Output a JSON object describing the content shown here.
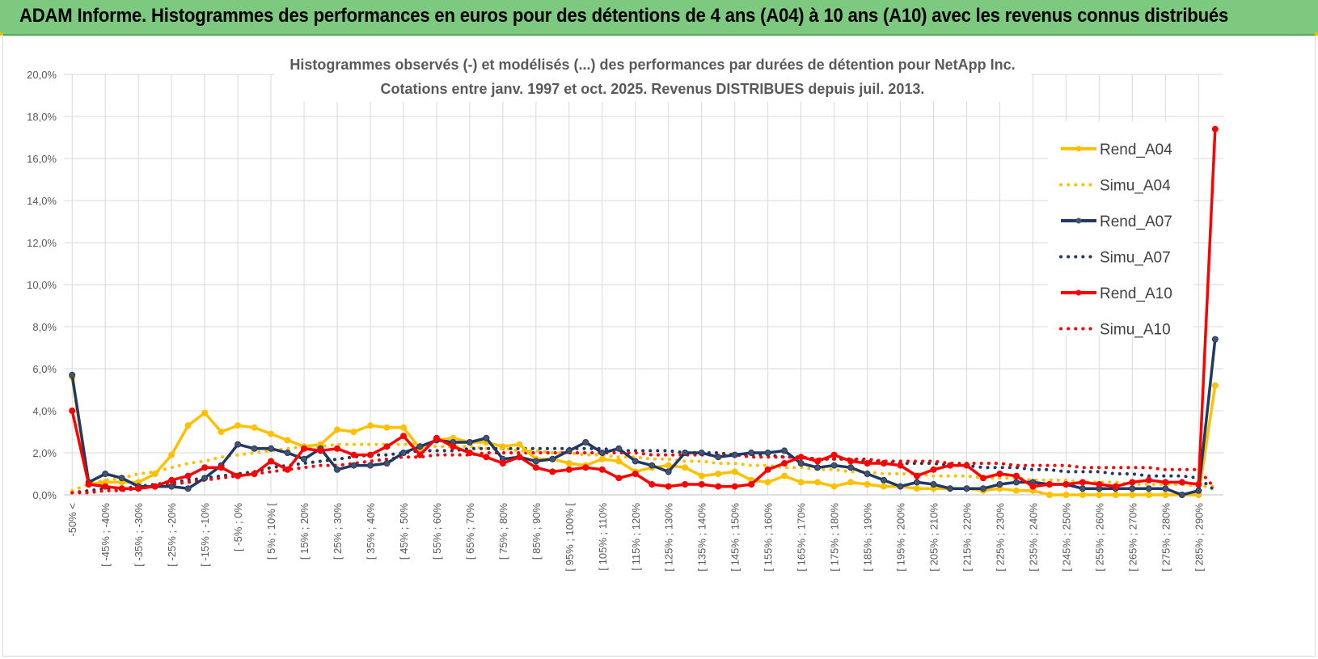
{
  "header": {
    "title": "ADAM Informe. Histogrammes des performances en euros pour des détentions de 4 ans (A04) à 10 ans (A10) avec les revenus connus distribués"
  },
  "chart_data": {
    "type": "line",
    "title": "Histogrammes observés (-) et modélisés (...) des performances par durées de détention pour NetApp Inc.",
    "subtitle": "Cotations entre janv. 1997 et oct. 2025.  Revenus DISTRIBUES depuis juil. 2013.",
    "xlabel": "",
    "ylabel": "",
    "ylim": [
      0,
      20
    ],
    "yticks": [
      "0,0%",
      "2,0%",
      "4,0%",
      "6,0%",
      "8,0%",
      "10,0%",
      "12,0%",
      "14,0%",
      "16,0%",
      "18,0%",
      "20,0%"
    ],
    "grid": true,
    "legend_position": "right",
    "category_count": 70,
    "tick_labels": [
      "-50% <",
      "[ -45% ; -40%",
      "[ -35% ; -30%",
      "[ -25% ; -20%",
      "[ -15% ; -10%",
      "[ -5% ; 0%",
      "[ 5% ; 10% [",
      "[ 15% ; 20%",
      "[ 25% ; 30%",
      "[ 35% ; 40%",
      "[ 45% ; 50%",
      "[ 55% ; 60%",
      "[ 65% ; 70%",
      "[ 75% ; 80%",
      "[ 85% ; 90%",
      "[ 95% ; 100% [",
      "[ 105% ; 110%",
      "[ 115% ; 120%",
      "[ 125% ; 130%",
      "[ 135% ; 140%",
      "[ 145% ; 150%",
      "[ 155% ; 160%",
      "[ 165% ; 170%",
      "[ 175% ; 180%",
      "[ 185% ; 190%",
      "[ 195% ; 200%",
      "[ 205% ; 210%",
      "[ 215% ; 220%",
      "[ 225% ; 230%",
      "[ 235% ; 240%",
      "[ 245% ; 250%",
      "[ 255% ; 260%",
      "[ 265% ; 270%",
      "[ 275% ; 280%",
      "[ 285% ; 290%"
    ],
    "tick_label_indices": [
      0,
      2,
      4,
      6,
      8,
      10,
      12,
      14,
      16,
      18,
      20,
      22,
      24,
      26,
      28,
      30,
      32,
      34,
      36,
      38,
      40,
      42,
      44,
      46,
      48,
      50,
      52,
      54,
      56,
      58,
      60,
      62,
      64,
      66,
      68
    ],
    "series": [
      {
        "name": "Rend_A04",
        "style": "solid",
        "color": "#ffc000",
        "marker": true,
        "values": [
          5.6,
          0.5,
          0.6,
          0.6,
          0.6,
          1.0,
          1.9,
          3.3,
          3.9,
          3.0,
          3.3,
          3.2,
          2.9,
          2.6,
          2.3,
          2.4,
          3.1,
          3.0,
          3.3,
          3.2,
          3.2,
          2.2,
          2.6,
          2.7,
          2.5,
          2.5,
          2.3,
          2.4,
          1.7,
          1.7,
          1.5,
          1.4,
          1.7,
          1.6,
          1.1,
          1.3,
          1.4,
          1.3,
          0.9,
          1.0,
          1.1,
          0.7,
          0.6,
          0.9,
          0.6,
          0.6,
          0.4,
          0.6,
          0.5,
          0.4,
          0.4,
          0.3,
          0.3,
          0.3,
          0.3,
          0.2,
          0.3,
          0.2,
          0.2,
          0.0,
          0.0,
          0.0,
          0.0,
          0.0,
          0.0,
          0.0,
          0.0,
          0.0,
          0.0,
          5.2
        ]
      },
      {
        "name": "Simu_A04",
        "style": "dotted",
        "color": "#ffc000",
        "marker": false,
        "values": [
          0.2,
          0.5,
          0.7,
          0.8,
          1.0,
          1.1,
          1.3,
          1.5,
          1.6,
          1.8,
          1.9,
          2.0,
          2.1,
          2.2,
          2.3,
          2.3,
          2.4,
          2.4,
          2.4,
          2.4,
          2.4,
          2.4,
          2.3,
          2.3,
          2.3,
          2.2,
          2.2,
          2.1,
          2.1,
          2.0,
          2.0,
          1.9,
          1.9,
          1.8,
          1.8,
          1.7,
          1.7,
          1.6,
          1.6,
          1.5,
          1.5,
          1.4,
          1.4,
          1.3,
          1.3,
          1.2,
          1.2,
          1.1,
          1.1,
          1.0,
          1.0,
          1.0,
          0.9,
          0.9,
          0.9,
          0.8,
          0.8,
          0.8,
          0.7,
          0.7,
          0.7,
          0.6,
          0.6,
          0.6,
          0.5,
          0.5,
          0.5,
          0.5,
          0.4,
          0.4
        ]
      },
      {
        "name": "Rend_A07",
        "style": "solid",
        "color": "#203864",
        "marker": true,
        "values": [
          5.7,
          0.6,
          1.0,
          0.8,
          0.4,
          0.4,
          0.4,
          0.3,
          0.8,
          1.4,
          2.4,
          2.2,
          2.2,
          2.0,
          1.7,
          2.2,
          1.2,
          1.4,
          1.4,
          1.5,
          2.0,
          2.3,
          2.6,
          2.5,
          2.5,
          2.7,
          1.7,
          1.8,
          1.6,
          1.7,
          2.1,
          2.5,
          2.0,
          2.2,
          1.6,
          1.4,
          1.1,
          2.0,
          2.0,
          1.8,
          1.9,
          2.0,
          2.0,
          2.1,
          1.5,
          1.3,
          1.4,
          1.3,
          1.0,
          0.7,
          0.4,
          0.6,
          0.5,
          0.3,
          0.3,
          0.3,
          0.5,
          0.6,
          0.6,
          0.5,
          0.5,
          0.3,
          0.3,
          0.3,
          0.3,
          0.3,
          0.3,
          0.0,
          0.2,
          7.4
        ]
      },
      {
        "name": "Simu_A07",
        "style": "dotted",
        "color": "#203864",
        "marker": false,
        "values": [
          0.1,
          0.2,
          0.3,
          0.3,
          0.4,
          0.5,
          0.6,
          0.7,
          0.8,
          0.9,
          1.0,
          1.1,
          1.3,
          1.4,
          1.5,
          1.6,
          1.7,
          1.8,
          1.9,
          1.9,
          2.0,
          2.1,
          2.1,
          2.1,
          2.2,
          2.2,
          2.2,
          2.2,
          2.2,
          2.2,
          2.2,
          2.2,
          2.2,
          2.1,
          2.1,
          2.1,
          2.1,
          2.0,
          2.0,
          2.0,
          1.9,
          1.9,
          1.9,
          1.8,
          1.8,
          1.7,
          1.7,
          1.7,
          1.6,
          1.6,
          1.5,
          1.5,
          1.5,
          1.4,
          1.4,
          1.3,
          1.3,
          1.3,
          1.2,
          1.2,
          1.1,
          1.1,
          1.1,
          1.0,
          1.0,
          0.9,
          0.9,
          0.9,
          0.8,
          0.2
        ]
      },
      {
        "name": "Rend_A10",
        "style": "solid",
        "color": "#ff0000",
        "marker": true,
        "values": [
          4.0,
          0.5,
          0.4,
          0.3,
          0.3,
          0.4,
          0.7,
          0.9,
          1.3,
          1.3,
          0.9,
          1.0,
          1.6,
          1.2,
          2.2,
          2.1,
          2.2,
          1.9,
          1.9,
          2.3,
          2.8,
          1.9,
          2.7,
          2.3,
          2.0,
          1.8,
          1.5,
          1.8,
          1.3,
          1.1,
          1.2,
          1.3,
          1.2,
          0.8,
          1.0,
          0.5,
          0.4,
          0.5,
          0.5,
          0.4,
          0.4,
          0.5,
          1.2,
          1.5,
          1.8,
          1.6,
          1.9,
          1.6,
          1.5,
          1.5,
          1.4,
          0.9,
          1.2,
          1.4,
          1.4,
          0.8,
          1.0,
          0.9,
          0.4,
          0.5,
          0.5,
          0.6,
          0.5,
          0.4,
          0.6,
          0.7,
          0.6,
          0.6,
          0.5,
          17.4
        ]
      },
      {
        "name": "Simu_A10",
        "style": "dotted",
        "color": "#ff0000",
        "marker": false,
        "values": [
          0.1,
          0.1,
          0.2,
          0.2,
          0.3,
          0.4,
          0.5,
          0.6,
          0.7,
          0.8,
          0.9,
          1.0,
          1.1,
          1.2,
          1.3,
          1.4,
          1.4,
          1.5,
          1.6,
          1.7,
          1.8,
          1.8,
          1.9,
          1.9,
          1.9,
          2.0,
          2.0,
          2.0,
          2.0,
          2.0,
          2.0,
          2.0,
          2.0,
          2.0,
          2.0,
          1.9,
          1.9,
          1.9,
          1.9,
          1.9,
          1.9,
          1.8,
          1.8,
          1.8,
          1.8,
          1.7,
          1.7,
          1.7,
          1.7,
          1.6,
          1.6,
          1.6,
          1.6,
          1.5,
          1.5,
          1.5,
          1.5,
          1.4,
          1.4,
          1.4,
          1.4,
          1.3,
          1.3,
          1.3,
          1.3,
          1.3,
          1.2,
          1.2,
          1.2,
          0.3
        ]
      }
    ]
  }
}
